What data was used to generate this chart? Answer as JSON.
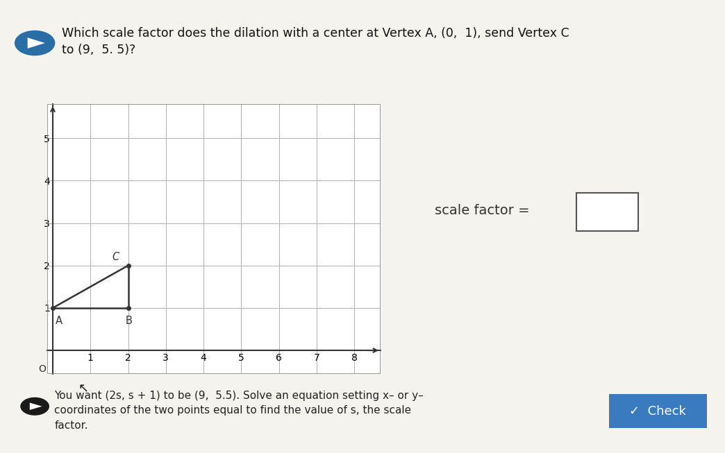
{
  "bg_color": "#ece9e0",
  "white_panel_color": "#f5f3ee",
  "title_line1": "Which scale factor does the dilation with a center at Vertex A, (0,  1), send Vertex C",
  "title_line2": "to (9,  5. 5)?",
  "play_icon_bg": "#2a6ea6",
  "play_icon_color": "#ffffff",
  "graph": {
    "xticks": [
      1,
      2,
      3,
      4,
      5,
      6,
      7,
      8
    ],
    "yticks": [
      1,
      2,
      3,
      4,
      5
    ],
    "vertex_A": [
      0,
      1
    ],
    "vertex_B": [
      2,
      1
    ],
    "vertex_C": [
      2,
      2
    ],
    "grid_color": "#b0b0b0",
    "line_color": "#333333",
    "label_A": "A",
    "label_B": "B",
    "label_C": "C",
    "graph_bg": "#ffffff",
    "border_color": "#888888"
  },
  "scale_factor_label": "scale factor =",
  "hint_line1": "You want (2s, s + 1) to be (9,  5.5). Solve an equation setting x– or y–",
  "hint_line2": "coordinates of the two points equal to find the value of s, the scale",
  "hint_line3": "factor.",
  "check_btn_color": "#3a7abf",
  "check_btn_text": "✓  Check",
  "check_btn_text_color": "#ffffff",
  "hint_text_color": "#222222",
  "scale_text_color": "#333333",
  "title_text_color": "#111111",
  "separator_color": "#cccccc"
}
